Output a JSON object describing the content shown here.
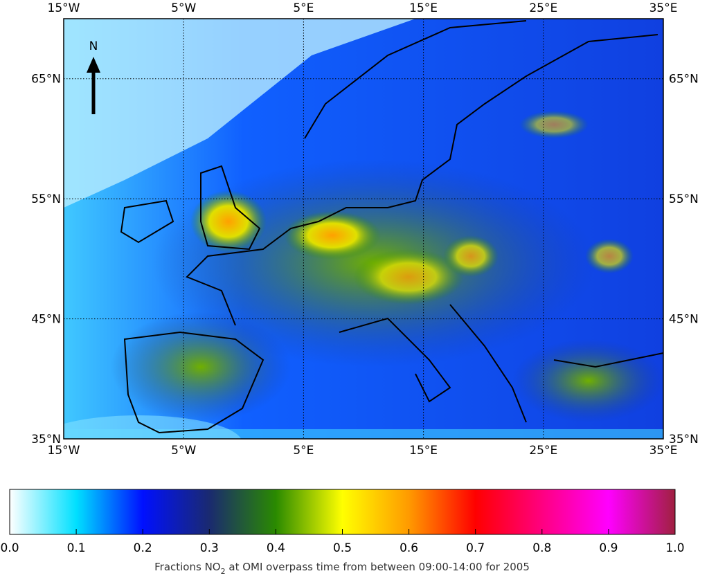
{
  "map": {
    "north_label": "N",
    "lon_ticks": [
      {
        "value": -15,
        "label": "15°W"
      },
      {
        "value": -5,
        "label": "5°W"
      },
      {
        "value": 5,
        "label": "5°E"
      },
      {
        "value": 15,
        "label": "15°E"
      },
      {
        "value": 25,
        "label": "25°E"
      },
      {
        "value": 35,
        "label": "35°E"
      }
    ],
    "lat_ticks": [
      {
        "value": 35,
        "label": "35°N"
      },
      {
        "value": 45,
        "label": "45°N"
      },
      {
        "value": 55,
        "label": "55°N"
      },
      {
        "value": 65,
        "label": "65°N"
      }
    ],
    "lon_range": [
      -15,
      35
    ],
    "lat_range": [
      35,
      70
    ]
  },
  "colorbar": {
    "range": [
      0,
      1
    ],
    "ticks": [
      {
        "value": 0,
        "label": "0.0"
      },
      {
        "value": 0.1,
        "label": "0.1"
      },
      {
        "value": 0.2,
        "label": "0.2"
      },
      {
        "value": 0.3,
        "label": "0.3"
      },
      {
        "value": 0.4,
        "label": "0.4"
      },
      {
        "value": 0.5,
        "label": "0.5"
      },
      {
        "value": 0.6,
        "label": "0.6"
      },
      {
        "value": 0.7,
        "label": "0.7"
      },
      {
        "value": 0.8,
        "label": "0.8"
      },
      {
        "value": 0.9,
        "label": "0.9"
      },
      {
        "value": 1,
        "label": "1.0"
      }
    ],
    "colormap": [
      "#ffffff",
      "#00e0ff",
      "#0010ff",
      "#1a2a70",
      "#2a8a00",
      "#ffff00",
      "#ff9a00",
      "#ff0000",
      "#ff0080",
      "#ff00ff",
      "#a02040"
    ],
    "caption_start": "Fractions NO",
    "caption_sub": "2",
    "caption_end": " at OMI overpass time from between 09:00-14:00 for 2005"
  }
}
